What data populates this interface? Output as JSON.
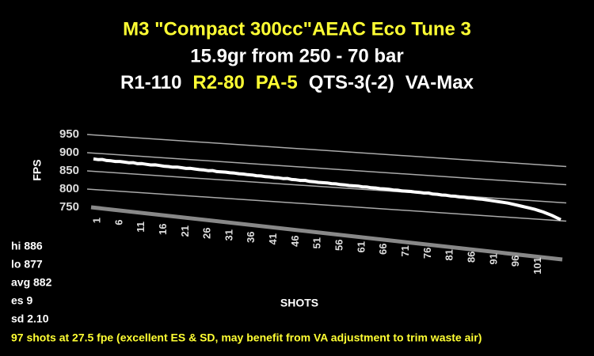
{
  "chart_data": {
    "type": "line",
    "title": "M3 \"Compact 300cc\"AEAC Eco Tune 3",
    "subtitle": "15.9gr from 250 - 70 bar",
    "settings_line": [
      {
        "text": "R1-110",
        "color": "#ffffff"
      },
      {
        "text": "R2-80",
        "color": "#ffff33"
      },
      {
        "text": "PA-5",
        "color": "#ffff33"
      },
      {
        "text": "QTS-3(-2)",
        "color": "#ffffff"
      },
      {
        "text": "VA-Max",
        "color": "#ffffff"
      }
    ],
    "title_color": "#ffff33",
    "y_label": "FPS",
    "x_label": "SHOTS",
    "stats": [
      "hi 886",
      "lo 877",
      "avg 882",
      "es 9",
      "sd 2.10"
    ],
    "note": "97 shots at 27.5 fpe (excellent ES & SD, may benefit from VA adjustment to trim waste air)",
    "note_color": "#ffff33",
    "color": "#ffffff",
    "grid": true,
    "x": [
      1,
      2,
      3,
      4,
      5,
      6,
      7,
      8,
      9,
      10,
      11,
      12,
      13,
      14,
      15,
      16,
      17,
      18,
      19,
      20,
      21,
      22,
      23,
      24,
      25,
      26,
      27,
      28,
      29,
      30,
      31,
      32,
      33,
      34,
      35,
      36,
      37,
      38,
      39,
      40,
      41,
      42,
      43,
      44,
      45,
      46,
      47,
      48,
      49,
      50,
      51,
      52,
      53,
      54,
      55,
      56,
      57,
      58,
      59,
      60,
      61,
      62,
      63,
      64,
      65,
      66,
      67,
      68,
      69,
      70,
      71,
      72,
      73,
      74,
      75,
      76,
      77,
      78,
      79,
      80,
      81,
      82,
      83,
      84,
      85,
      86,
      87,
      88,
      89,
      90,
      91,
      92,
      93,
      94,
      95,
      96,
      97,
      98,
      99,
      100,
      101,
      102,
      103,
      104,
      105,
      106,
      107
    ],
    "values": [
      884,
      883,
      884,
      882,
      882,
      881,
      882,
      881,
      880,
      881,
      879,
      880,
      879,
      878,
      879,
      878,
      877,
      877,
      876,
      877,
      876,
      875,
      876,
      875,
      874,
      874,
      873,
      874,
      872,
      872,
      872,
      871,
      871,
      870,
      870,
      869,
      869,
      868,
      868,
      867,
      867,
      866,
      866,
      865,
      866,
      864,
      864,
      863,
      864,
      862,
      862,
      861,
      861,
      861,
      860,
      860,
      859,
      859,
      858,
      858,
      858,
      857,
      857,
      856,
      856,
      855,
      855,
      855,
      854,
      854,
      853,
      853,
      853,
      852,
      852,
      851,
      852,
      850,
      850,
      849,
      849,
      848,
      848,
      847,
      847,
      846,
      846,
      845,
      845,
      844,
      843,
      842,
      841,
      840,
      839,
      837,
      835,
      833,
      831,
      829,
      827,
      824,
      821,
      817,
      813,
      808,
      803
    ],
    "xlim": [
      1,
      107
    ],
    "xticks": [
      1,
      6,
      11,
      16,
      21,
      26,
      31,
      36,
      41,
      46,
      51,
      56,
      61,
      66,
      71,
      76,
      81,
      86,
      91,
      96,
      101
    ],
    "ylim": [
      750,
      950
    ],
    "yticks": [
      750,
      800,
      850,
      900,
      950
    ]
  }
}
